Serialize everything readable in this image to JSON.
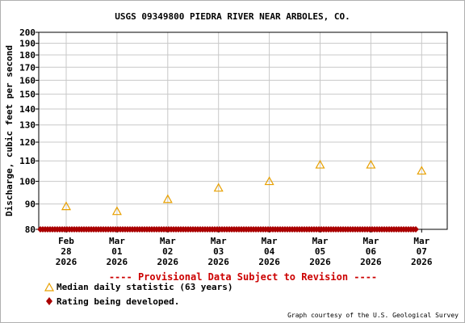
{
  "chart_data": {
    "type": "scatter",
    "title": "USGS 09349800 PIEDRA RIVER NEAR ARBOLES, CO.",
    "ylabel": "Discharge, cubic feet per second",
    "xlabel": "",
    "y_scale": "log",
    "ylim": [
      80,
      200
    ],
    "y_ticks": [
      80,
      90,
      100,
      110,
      120,
      130,
      140,
      150,
      160,
      170,
      180,
      190,
      200
    ],
    "x_ticks": [
      [
        "Feb",
        "28",
        "2026"
      ],
      [
        "Mar",
        "01",
        "2026"
      ],
      [
        "Mar",
        "02",
        "2026"
      ],
      [
        "Mar",
        "03",
        "2026"
      ],
      [
        "Mar",
        "04",
        "2026"
      ],
      [
        "Mar",
        "05",
        "2026"
      ],
      [
        "Mar",
        "06",
        "2026"
      ],
      [
        "Mar",
        "07",
        "2026"
      ]
    ],
    "grid": true,
    "series": [
      {
        "name": "Median daily statistic (63 years)",
        "marker": "triangle",
        "color": "#e8a000",
        "x": [
          "2026-02-28",
          "2026-03-01",
          "2026-03-02",
          "2026-03-03",
          "2026-03-04",
          "2026-03-05",
          "2026-03-06",
          "2026-03-07"
        ],
        "values": [
          89,
          87,
          92,
          97,
          100,
          108,
          108,
          105
        ]
      },
      {
        "name": "Rating being developed.",
        "marker": "diamond",
        "color": "#aa0000",
        "x_start": "2026-02-28",
        "x_end": "2026-03-07",
        "value": 80
      }
    ],
    "annotation": "---- Provisional Data Subject to Revision ----",
    "credit": "Graph courtesy of the U.S. Geological Survey"
  }
}
